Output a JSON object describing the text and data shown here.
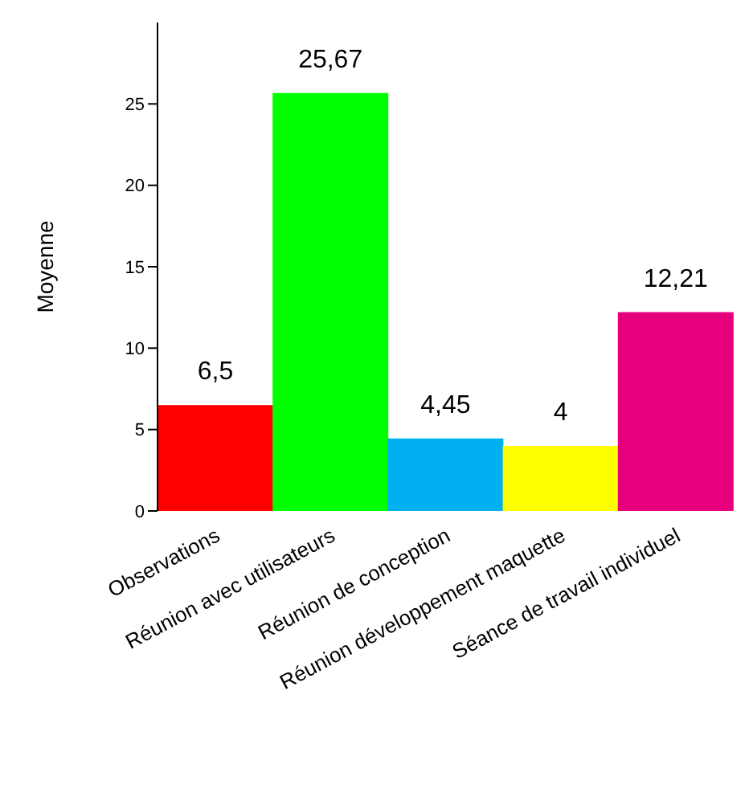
{
  "chart_data": {
    "type": "bar",
    "ylabel": "Moyenne",
    "categories": [
      "Observations",
      "Réunion avec utilisateurs",
      "Réunion de conception",
      "Réunion développement maquette",
      "Séance de travail individuel"
    ],
    "values": [
      6.5,
      25.67,
      4.45,
      4,
      12.21
    ],
    "colors": [
      "#ff0000",
      "#00ff00",
      "#00b0f0",
      "#ffff00",
      "#e6007e"
    ],
    "value_labels": [
      "6,5",
      "25,67",
      "4,45",
      "4",
      "12,21"
    ],
    "ylim": [
      0,
      30
    ],
    "yticks": [
      0,
      5,
      10,
      15,
      20,
      25
    ],
    "grid": false,
    "legend": false
  }
}
